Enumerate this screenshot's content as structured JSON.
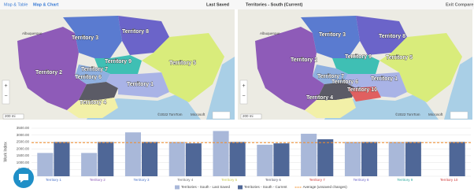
{
  "header": {
    "tabs": [
      "Map & Table",
      "Map & Chart"
    ],
    "exit": "Exit Compare"
  },
  "maps": [
    {
      "title": "Last Saved",
      "territories": [
        "Territory 3",
        "Territory 8",
        "Territory 2",
        "Territory 9",
        "Territory 5",
        "Territory 7",
        "Territory 6",
        "Territory 1",
        "Territory 4"
      ],
      "city": "Albuquerque",
      "copyright": "©2022 TomTom",
      "brand": "Microsoft",
      "scale": "200 mi"
    },
    {
      "title": "Territories - South (Current)",
      "territories": [
        "Territory 3",
        "Territory 8",
        "Territory 2",
        "Territory 9",
        "Territory 5",
        "Territory 7",
        "Territory 6",
        "Territory 1",
        "Territory 10",
        "Territory 4"
      ],
      "city": "Albuquerque",
      "copyright": "©2022 TomTom",
      "brand": "Microsoft",
      "scale": "200 mi"
    }
  ],
  "chart_data": {
    "type": "bar",
    "y_label": "Work Index",
    "categories": [
      "Territory 1",
      "Territory 2",
      "Territory 3",
      "Territory 4",
      "Territory 5",
      "Territory 6",
      "Territory 7",
      "Territory 8",
      "Territory 9",
      "Territory 10"
    ],
    "category_colors": [
      "#4a72c9",
      "#8e5bb8",
      "#4a72c9",
      "#6b6b6b",
      "#c9c94a",
      "#555566",
      "#d03b3b",
      "#6b64c9",
      "#2aa89e",
      "#d03b3b"
    ],
    "series": [
      {
        "name": "Territories - South - Last Saved",
        "color": "#a9b8d9",
        "values": [
          1700,
          1700,
          3200,
          2500,
          3300,
          2300,
          3100,
          2500,
          2500,
          null
        ]
      },
      {
        "name": "Territories - South - Current",
        "color": "#4f6797",
        "values": [
          2500,
          2500,
          2500,
          2400,
          2500,
          2400,
          2700,
          2500,
          2500,
          2500
        ]
      }
    ],
    "average": {
      "name": "Average (unsaved changes)",
      "value": 2450,
      "color": "#f28c28"
    },
    "ylim": [
      0,
      3500
    ],
    "yticks": [
      {
        "value": 0,
        "label": "0.00"
      },
      {
        "value": 500,
        "label": "500.00"
      },
      {
        "value": 1000,
        "label": "1000.00"
      },
      {
        "value": 1500,
        "label": "1500.00"
      },
      {
        "value": 2000,
        "label": "2000.00"
      },
      {
        "value": 2500,
        "label": "2500.00"
      },
      {
        "value": 3000,
        "label": "3000.00"
      },
      {
        "value": 3500,
        "label": "3500.00"
      }
    ],
    "grid": true
  }
}
